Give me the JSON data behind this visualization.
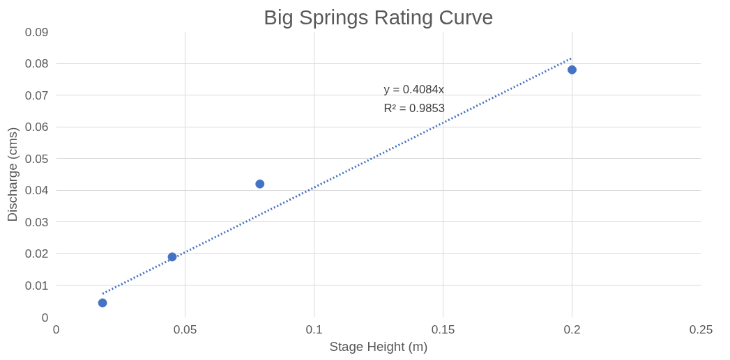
{
  "chart_data": {
    "type": "scatter",
    "title": "Big Springs Rating Curve",
    "xlabel": "Stage Height (m)",
    "ylabel": "Discharge (cms)",
    "series": [
      {
        "color": "#4472c4",
        "marker": "circle",
        "x": [
          0.018,
          0.045,
          0.079,
          0.2
        ],
        "values": [
          0.0045,
          0.019,
          0.042,
          0.078
        ]
      },
      {
        "type": "line",
        "color": "#4472c4",
        "line_style": "dotted",
        "x": [
          0.018,
          0.2
        ],
        "values": [
          0.0074,
          0.0817
        ]
      }
    ],
    "annotations": [
      "y = 0.4084x",
      "R² = 0.9853"
    ],
    "xlim": [
      0,
      0.25
    ],
    "xticks": [
      0,
      0.05,
      0.1,
      0.15,
      0.2,
      0.25
    ],
    "ylim": [
      0,
      0.09
    ],
    "yticks": [
      0,
      0.01,
      0.02,
      0.03,
      0.04,
      0.05,
      0.06,
      0.07,
      0.08,
      0.09
    ],
    "grid": true
  }
}
